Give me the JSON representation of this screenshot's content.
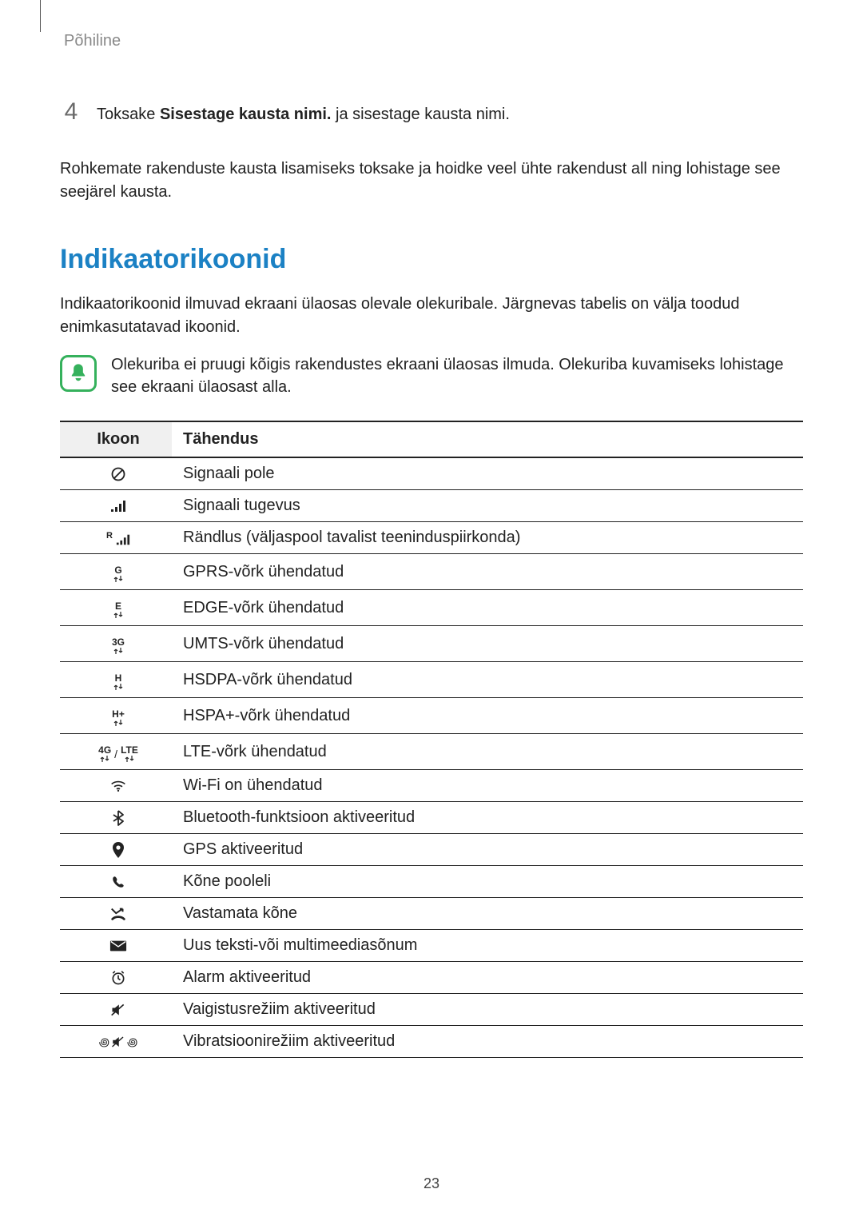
{
  "header": "Põhiline",
  "step": {
    "number": "4",
    "prefix": "Toksake ",
    "bold": "Sisestage kausta nimi.",
    "suffix": " ja sisestage kausta nimi."
  },
  "paragraph": "Rohkemate rakenduste kausta lisamiseks toksake ja hoidke veel ühte rakendust all ning lohistage see seejärel kausta.",
  "heading": {
    "text": "Indikaatorikoonid",
    "color": "#1b81c4"
  },
  "intro": "Indikaatorikoonid ilmuvad ekraani ülaosas olevale olekuribale. Järgnevas tabelis on välja toodud enimkasutatavad ikoonid.",
  "note": {
    "icon_color": "#35b15c",
    "text": "Olekuriba ei pruugi kõigis rakendustes ekraani ülaosas ilmuda. Olekuriba kuvamiseks lohistage see ekraani ülaosast alla."
  },
  "table": {
    "headers": {
      "icon": "Ikoon",
      "meaning": "Tähendus"
    },
    "rows": [
      {
        "icon": "no-signal",
        "meaning": "Signaali pole"
      },
      {
        "icon": "signal",
        "meaning": "Signaali tugevus"
      },
      {
        "icon": "roaming",
        "meaning": "Rändlus (väljaspool tavalist teeninduspiirkonda)"
      },
      {
        "icon": "gprs",
        "meaning": "GPRS-võrk ühendatud"
      },
      {
        "icon": "edge",
        "meaning": "EDGE-võrk ühendatud"
      },
      {
        "icon": "umts",
        "meaning": "UMTS-võrk ühendatud"
      },
      {
        "icon": "hsdpa",
        "meaning": "HSDPA-võrk ühendatud"
      },
      {
        "icon": "hspap",
        "meaning": "HSPA+-võrk ühendatud"
      },
      {
        "icon": "lte",
        "meaning": "LTE-võrk ühendatud"
      },
      {
        "icon": "wifi",
        "meaning": "Wi-Fi on ühendatud"
      },
      {
        "icon": "bluetooth",
        "meaning": "Bluetooth-funktsioon aktiveeritud"
      },
      {
        "icon": "gps",
        "meaning": "GPS aktiveeritud"
      },
      {
        "icon": "call",
        "meaning": "Kõne pooleli"
      },
      {
        "icon": "missed",
        "meaning": "Vastamata kõne"
      },
      {
        "icon": "message",
        "meaning": "Uus teksti-või multimeediasõnum"
      },
      {
        "icon": "alarm",
        "meaning": "Alarm aktiveeritud"
      },
      {
        "icon": "mute",
        "meaning": "Vaigistusrežiim aktiveeritud"
      },
      {
        "icon": "vibrate",
        "meaning": "Vibratsioonirežiim aktiveeritud"
      }
    ],
    "net_labels": {
      "gprs": "G",
      "edge": "E",
      "umts": "3G",
      "hsdpa": "H",
      "hspap": "H+",
      "lte_a": "4G",
      "lte_b": "LTE"
    }
  },
  "page_number": "23",
  "colors": {
    "text": "#222222",
    "muted": "#888888",
    "rule": "#222222",
    "heading": "#1b81c4"
  }
}
